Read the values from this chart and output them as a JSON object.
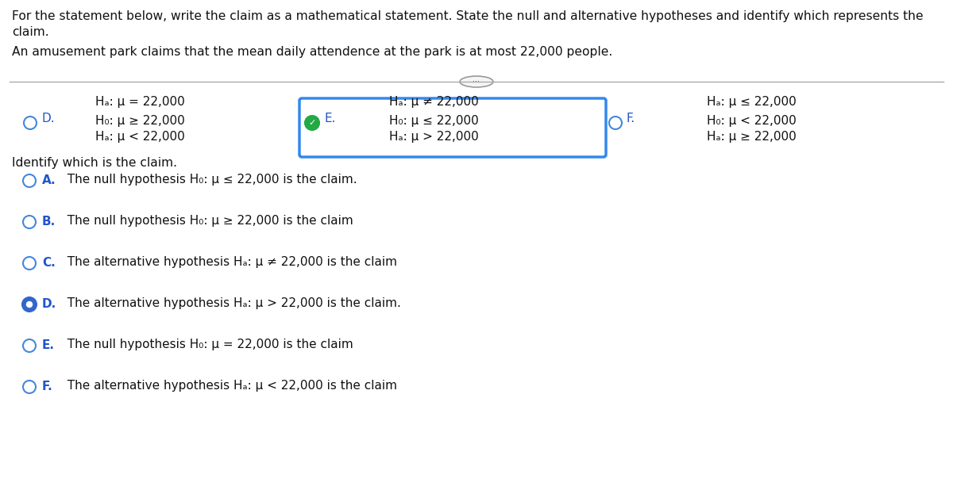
{
  "bg_color": "#ffffff",
  "title_line1": "For the statement below, write the claim as a mathematical statement. State the null and alternative hypotheses and identify which represents the",
  "title_line2": "claim.",
  "problem_text": "An amusement park claims that the mean daily attendence at the park is at most 22,000 people.",
  "col1_Ha_top": "Hₐ: μ = 22,000",
  "col2_Ha_top": "Hₐ: μ ≠ 22,000",
  "col3_Ha_top": "Hₐ: μ ≤ 22,000",
  "optD_label": "D.",
  "optD_line1": "H₀: μ ≥ 22,000",
  "optD_line2": "Hₐ: μ < 22,000",
  "optE_label": "E.",
  "optE_line1": "H₀: μ ≤ 22,000",
  "optE_line2": "Hₐ: μ > 22,000",
  "optF_label": "F.",
  "optF_line1": "H₀: μ < 22,000",
  "optF_line2": "Hₐ: μ ≥ 22,000",
  "identify_text": "Identify which is the claim.",
  "ans": [
    {
      "label": "A.",
      "text": "  The null hypothesis H₀: μ ≤ 22,000 is the claim.",
      "selected": false
    },
    {
      "label": "B.",
      "text": "  The null hypothesis H₀: μ ≥ 22,000 is the claim",
      "selected": false
    },
    {
      "label": "C.",
      "text": "  The alternative hypothesis Hₐ: μ ≠ 22,000 is the claim",
      "selected": false
    },
    {
      "label": "D.",
      "text": "  The alternative hypothesis Hₐ: μ > 22,000 is the claim.",
      "selected": true
    },
    {
      "label": "E.",
      "text": "  The null hypothesis H₀: μ = 22,000 is the claim",
      "selected": false
    },
    {
      "label": "F.",
      "text": "  The alternative hypothesis Hₐ: μ < 22,000 is the claim",
      "selected": false
    }
  ],
  "text_color": "#111111",
  "label_color": "#2255cc",
  "radio_edge_color": "#4488dd",
  "radio_selected_fill": "#3366cc",
  "box_color": "#3388ee",
  "check_color": "#22aa44",
  "line_color": "#aaaaaa",
  "ellipse_edge": "#999999",
  "ellipse_face": "#f5f5f5",
  "font_size": 11.0,
  "label_font_size": 11.0
}
